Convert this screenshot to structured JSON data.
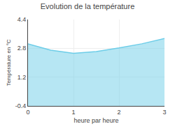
{
  "chart_data": {
    "type": "area",
    "title": "Evolution de la température",
    "xlabel": "heure par heure",
    "ylabel": "Température en °C",
    "x": [
      0,
      0.5,
      1.0,
      1.5,
      2.0,
      2.5,
      3.0
    ],
    "values": [
      3.05,
      2.7,
      2.52,
      2.62,
      2.82,
      3.05,
      3.35
    ],
    "color": "#6dcde8",
    "xlim": [
      0,
      3.0
    ],
    "ylim": [
      -0.4,
      4.4
    ],
    "xticks": [
      0,
      1,
      2,
      3
    ],
    "yticks": [
      -0.4,
      1.2,
      2.8,
      4.4
    ],
    "grid": true
  }
}
